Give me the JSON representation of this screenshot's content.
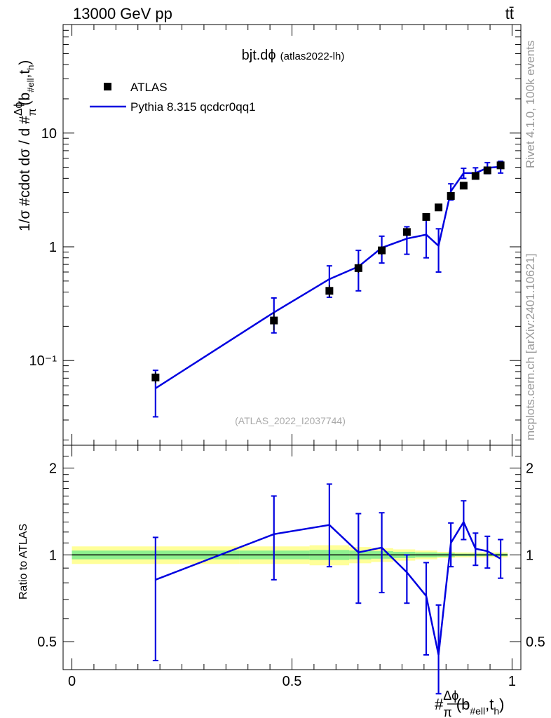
{
  "header": {
    "energy_label": "13000 GeV pp",
    "process_label": "tt̄"
  },
  "side_labels": {
    "rivet": "Rivet 4.1.0,  100k events",
    "mcplots": "mcplots.cern.ch [arXiv:2401.10621]"
  },
  "plot_title": {
    "main": "bjt.dϕ",
    "tag": "(atlas2022-lh)"
  },
  "analysis_id": "(ATLAS_2022_I2037744)",
  "legend": {
    "data_label": "ATLAS",
    "mc_label": "Pythia 8.315 qcdcr0qq1"
  },
  "axes": {
    "main_ylabel": "1/σ #cdot dσ / d #(Δϕ/π)(b_#ell,t_h)",
    "main_yticks": [
      "10",
      "1",
      "10⁻¹"
    ],
    "ratio_ylabel": "Ratio to ATLAS",
    "ratio_yticks": [
      "2",
      "1",
      "0.5"
    ],
    "xticks": [
      "0",
      "0.5",
      "1"
    ],
    "xlabel": "#(Δϕ/π)(b_#ell,t_h)"
  },
  "colors": {
    "data": "#000000",
    "mc": "#0000e0",
    "band_inner": "#8ef08e",
    "band_outer": "#ffff99"
  },
  "chart_data": [
    {
      "type": "scatter",
      "panel": "main",
      "title": "bjt.dϕ (atlas2022-lh)",
      "xlabel": "#(Δϕ/π)(b_#ell,t_h)",
      "ylabel": "1/σ #cdot dσ / d #(Δϕ/π)(b_#ell,t_h)",
      "yscale": "log",
      "xlim": [
        -0.02,
        1.02
      ],
      "ylim": [
        0.018,
        90
      ],
      "series": [
        {
          "name": "ATLAS",
          "style": "markers",
          "x": [
            0.19,
            0.459,
            0.585,
            0.651,
            0.704,
            0.761,
            0.805,
            0.833,
            0.861,
            0.89,
            0.917,
            0.944,
            0.974
          ],
          "values": [
            0.071,
            0.225,
            0.41,
            0.65,
            0.93,
            1.35,
            1.83,
            2.22,
            2.8,
            3.45,
            4.2,
            4.7,
            5.2
          ],
          "err_lo": [
            0.008,
            0.04,
            0.05,
            0.06,
            0.08,
            0.11,
            0.13,
            0.15,
            0.17,
            0.18,
            0.2,
            0.22,
            0.25
          ],
          "err_hi": [
            0.008,
            0.04,
            0.05,
            0.06,
            0.08,
            0.11,
            0.13,
            0.15,
            0.17,
            0.18,
            0.2,
            0.22,
            0.25
          ]
        },
        {
          "name": "Pythia 8.315 qcdcr0qq1",
          "style": "line",
          "x": [
            0.19,
            0.459,
            0.585,
            0.651,
            0.704,
            0.761,
            0.805,
            0.833,
            0.861,
            0.89,
            0.917,
            0.944,
            0.974
          ],
          "values": [
            0.057,
            0.265,
            0.52,
            0.67,
            0.98,
            1.18,
            1.28,
            1.02,
            3.08,
            4.45,
            4.45,
            4.95,
            5.05
          ],
          "err_lo": [
            0.025,
            0.09,
            0.16,
            0.26,
            0.26,
            0.32,
            0.48,
            0.42,
            0.5,
            0.45,
            0.5,
            0.55,
            0.6
          ],
          "err_hi": [
            0.025,
            0.09,
            0.16,
            0.26,
            0.26,
            0.32,
            0.48,
            0.42,
            0.5,
            0.45,
            0.5,
            0.55,
            0.6
          ]
        }
      ]
    },
    {
      "type": "line",
      "panel": "ratio",
      "ylabel": "Ratio to ATLAS",
      "xlabel": "#(Δϕ/π)(b_#ell,t_h)",
      "yscale": "log",
      "xlim": [
        -0.02,
        1.02
      ],
      "ylim": [
        0.4,
        2.4
      ],
      "reference": 1.0,
      "band": {
        "x_edges": [
          0.0,
          0.38,
          0.54,
          0.63,
          0.68,
          0.73,
          0.78,
          0.83,
          0.87,
          0.9,
          0.93,
          0.96,
          0.99
        ],
        "inner_lo": [
          0.965,
          0.965,
          0.96,
          0.965,
          0.97,
          0.975,
          0.98,
          0.985,
          0.99,
          0.99,
          0.99,
          0.99
        ],
        "inner_hi": [
          1.035,
          1.035,
          1.04,
          1.035,
          1.03,
          1.025,
          1.02,
          1.015,
          1.01,
          1.01,
          1.01,
          1.01
        ],
        "outer_lo": [
          0.93,
          0.93,
          0.92,
          0.935,
          0.945,
          0.955,
          0.965,
          0.975,
          0.98,
          0.98,
          0.98,
          0.98
        ],
        "outer_hi": [
          1.07,
          1.07,
          1.08,
          1.065,
          1.055,
          1.045,
          1.035,
          1.025,
          1.02,
          1.02,
          1.02,
          1.02
        ]
      },
      "series": [
        {
          "name": "Pythia 8.315 qcdcr0qq1",
          "x": [
            0.19,
            0.459,
            0.585,
            0.651,
            0.704,
            0.761,
            0.805,
            0.833,
            0.861,
            0.89,
            0.917,
            0.944,
            0.974
          ],
          "values": [
            0.82,
            1.18,
            1.27,
            1.02,
            1.06,
            0.87,
            0.72,
            0.45,
            1.1,
            1.3,
            1.05,
            1.03,
            0.97
          ],
          "err_lo": [
            0.39,
            0.36,
            0.36,
            0.34,
            0.32,
            0.19,
            0.27,
            0.12,
            0.19,
            0.17,
            0.13,
            0.13,
            0.14
          ],
          "err_hi": [
            0.33,
            0.42,
            0.49,
            0.37,
            0.34,
            0.13,
            0.22,
            0.22,
            0.19,
            0.24,
            0.14,
            0.13,
            0.16
          ]
        }
      ]
    }
  ]
}
